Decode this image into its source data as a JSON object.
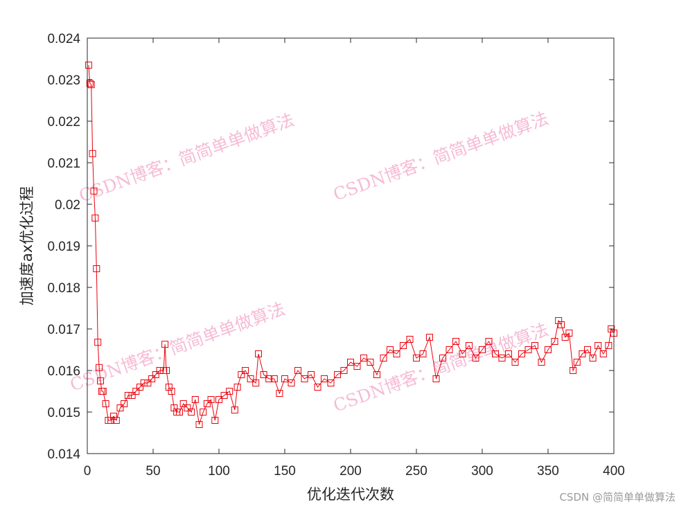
{
  "chart_data": {
    "type": "line",
    "xlabel": "优化迭代次数",
    "ylabel": "加速度ax优化过程",
    "xlim": [
      0,
      400
    ],
    "ylim": [
      0.014,
      0.024
    ],
    "xticks": [
      0,
      50,
      100,
      150,
      200,
      250,
      300,
      350,
      400
    ],
    "yticks": [
      0.014,
      0.015,
      0.016,
      0.017,
      0.018,
      0.019,
      0.02,
      0.021,
      0.022,
      0.023,
      0.024
    ],
    "xtick_labels": [
      "0",
      "50",
      "100",
      "150",
      "200",
      "250",
      "300",
      "350",
      "400"
    ],
    "ytick_labels": [
      "0.014",
      "0.015",
      "0.016",
      "0.017",
      "0.018",
      "0.019",
      "0.02",
      "0.021",
      "0.022",
      "0.023",
      "0.024"
    ],
    "grid": false,
    "series": [
      {
        "color": "#e8000b",
        "marker": "square",
        "x": [
          1,
          2,
          3,
          4,
          5,
          6,
          7,
          8,
          9,
          10,
          11,
          12,
          14,
          16,
          18,
          20,
          22,
          25,
          28,
          31,
          34,
          37,
          40,
          43,
          46,
          49,
          52,
          55,
          58,
          59,
          60,
          62,
          64,
          66,
          68,
          70,
          73,
          76,
          79,
          82,
          85,
          88,
          91,
          94,
          97,
          100,
          104,
          108,
          112,
          114,
          117,
          120,
          124,
          128,
          130,
          134,
          138,
          142,
          146,
          150,
          155,
          160,
          165,
          170,
          175,
          180,
          185,
          190,
          195,
          200,
          205,
          210,
          215,
          220,
          225,
          230,
          235,
          240,
          245,
          250,
          255,
          260,
          265,
          270,
          275,
          280,
          285,
          290,
          295,
          300,
          305,
          310,
          315,
          320,
          325,
          330,
          335,
          340,
          345,
          350,
          355,
          358,
          360,
          363,
          366,
          369,
          372,
          376,
          380,
          384,
          388,
          392,
          396,
          398,
          400
        ],
        "y": [
          0.02335,
          0.02291,
          0.02288,
          0.02122,
          0.02032,
          0.01967,
          0.01845,
          0.01668,
          0.01607,
          0.01575,
          0.0155,
          0.0155,
          0.0152,
          0.0148,
          0.0148,
          0.0149,
          0.0148,
          0.0151,
          0.0152,
          0.0154,
          0.0154,
          0.0155,
          0.0156,
          0.0157,
          0.0157,
          0.0158,
          0.0159,
          0.016,
          0.016,
          0.01663,
          0.016,
          0.0156,
          0.0155,
          0.0151,
          0.015,
          0.015,
          0.0152,
          0.0151,
          0.015,
          0.0153,
          0.0147,
          0.015,
          0.0152,
          0.0153,
          0.0148,
          0.0153,
          0.0154,
          0.0155,
          0.01505,
          0.0156,
          0.0159,
          0.016,
          0.0158,
          0.0157,
          0.0164,
          0.0159,
          0.0158,
          0.0158,
          0.01545,
          0.0158,
          0.0157,
          0.016,
          0.0158,
          0.0159,
          0.0156,
          0.0158,
          0.0157,
          0.0159,
          0.016,
          0.0162,
          0.0161,
          0.0163,
          0.0162,
          0.0159,
          0.0163,
          0.0165,
          0.0164,
          0.0166,
          0.01675,
          0.0163,
          0.0164,
          0.0168,
          0.0158,
          0.0163,
          0.0165,
          0.0167,
          0.0164,
          0.0166,
          0.0163,
          0.0165,
          0.0167,
          0.0164,
          0.0163,
          0.0164,
          0.0162,
          0.0164,
          0.0165,
          0.0166,
          0.0162,
          0.0165,
          0.0167,
          0.0172,
          0.0171,
          0.0168,
          0.0169,
          0.016,
          0.0162,
          0.0164,
          0.0165,
          0.0163,
          0.0166,
          0.0164,
          0.0166,
          0.017,
          0.0169
        ]
      }
    ]
  },
  "watermark": {
    "text": "CSDN博客：简简单单做算法",
    "color": "#f4a6c8"
  },
  "credit": "CSDN @简简单单做算法"
}
